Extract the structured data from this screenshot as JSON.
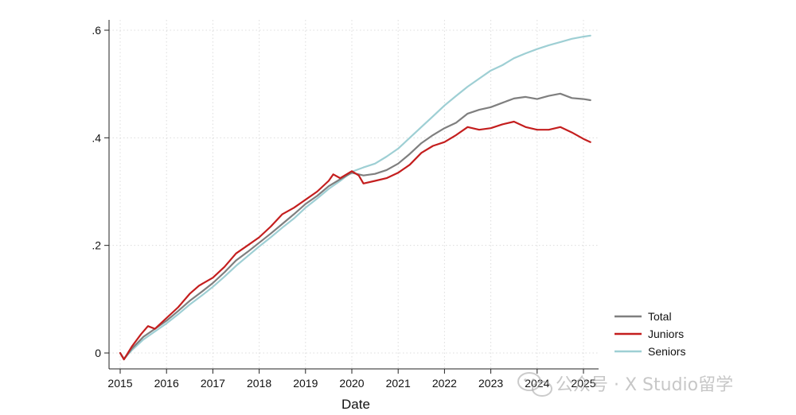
{
  "chart_data": {
    "type": "line",
    "title": "",
    "xlabel": "Date",
    "ylabel": "",
    "xlim": [
      2015,
      2025.15
    ],
    "ylim": [
      -0.03,
      0.61
    ],
    "x_ticks": [
      {
        "value": 2015,
        "label": "2015"
      },
      {
        "value": 2016,
        "label": "2016"
      },
      {
        "value": 2017,
        "label": "2017"
      },
      {
        "value": 2018,
        "label": "2018"
      },
      {
        "value": 2019,
        "label": "2019"
      },
      {
        "value": 2020,
        "label": "2020"
      },
      {
        "value": 2021,
        "label": "2021"
      },
      {
        "value": 2022,
        "label": "2022"
      },
      {
        "value": 2023,
        "label": "2023"
      },
      {
        "value": 2024,
        "label": "2024"
      },
      {
        "value": 2025,
        "label": "2025"
      }
    ],
    "y_ticks": [
      {
        "value": 0,
        "label": "0"
      },
      {
        "value": 0.2,
        "label": ".2"
      },
      {
        "value": 0.4,
        "label": ".4"
      },
      {
        "value": 0.6,
        "label": ".6"
      }
    ],
    "grid": true,
    "legend_position": "right-bottom",
    "series": [
      {
        "name": "Total",
        "color": "#7f7f7f",
        "points": [
          [
            2015.0,
            0.0
          ],
          [
            2015.08,
            -0.012
          ],
          [
            2015.25,
            0.008
          ],
          [
            2015.5,
            0.03
          ],
          [
            2015.75,
            0.045
          ],
          [
            2016.0,
            0.06
          ],
          [
            2016.25,
            0.078
          ],
          [
            2016.5,
            0.097
          ],
          [
            2016.75,
            0.113
          ],
          [
            2017.0,
            0.13
          ],
          [
            2017.25,
            0.15
          ],
          [
            2017.5,
            0.172
          ],
          [
            2017.75,
            0.188
          ],
          [
            2018.0,
            0.205
          ],
          [
            2018.25,
            0.222
          ],
          [
            2018.5,
            0.24
          ],
          [
            2018.75,
            0.258
          ],
          [
            2019.0,
            0.277
          ],
          [
            2019.25,
            0.292
          ],
          [
            2019.5,
            0.31
          ],
          [
            2019.75,
            0.323
          ],
          [
            2020.0,
            0.335
          ],
          [
            2020.25,
            0.33
          ],
          [
            2020.5,
            0.333
          ],
          [
            2020.75,
            0.34
          ],
          [
            2021.0,
            0.352
          ],
          [
            2021.25,
            0.37
          ],
          [
            2021.5,
            0.39
          ],
          [
            2021.75,
            0.405
          ],
          [
            2022.0,
            0.418
          ],
          [
            2022.25,
            0.428
          ],
          [
            2022.5,
            0.445
          ],
          [
            2022.75,
            0.452
          ],
          [
            2023.0,
            0.457
          ],
          [
            2023.25,
            0.465
          ],
          [
            2023.5,
            0.473
          ],
          [
            2023.75,
            0.476
          ],
          [
            2024.0,
            0.472
          ],
          [
            2024.25,
            0.478
          ],
          [
            2024.5,
            0.482
          ],
          [
            2024.75,
            0.474
          ],
          [
            2025.0,
            0.472
          ],
          [
            2025.15,
            0.47
          ]
        ]
      },
      {
        "name": "Juniors",
        "color": "#c41e1e",
        "points": [
          [
            2015.0,
            0.0
          ],
          [
            2015.08,
            -0.012
          ],
          [
            2015.25,
            0.012
          ],
          [
            2015.45,
            0.035
          ],
          [
            2015.6,
            0.05
          ],
          [
            2015.75,
            0.045
          ],
          [
            2016.0,
            0.065
          ],
          [
            2016.25,
            0.085
          ],
          [
            2016.5,
            0.11
          ],
          [
            2016.7,
            0.125
          ],
          [
            2017.0,
            0.14
          ],
          [
            2017.25,
            0.16
          ],
          [
            2017.5,
            0.185
          ],
          [
            2017.75,
            0.2
          ],
          [
            2018.0,
            0.215
          ],
          [
            2018.25,
            0.235
          ],
          [
            2018.5,
            0.258
          ],
          [
            2018.75,
            0.27
          ],
          [
            2019.0,
            0.285
          ],
          [
            2019.25,
            0.3
          ],
          [
            2019.5,
            0.32
          ],
          [
            2019.6,
            0.332
          ],
          [
            2019.75,
            0.325
          ],
          [
            2020.0,
            0.338
          ],
          [
            2020.15,
            0.33
          ],
          [
            2020.25,
            0.315
          ],
          [
            2020.5,
            0.32
          ],
          [
            2020.75,
            0.325
          ],
          [
            2021.0,
            0.335
          ],
          [
            2021.25,
            0.35
          ],
          [
            2021.5,
            0.372
          ],
          [
            2021.75,
            0.385
          ],
          [
            2022.0,
            0.392
          ],
          [
            2022.25,
            0.405
          ],
          [
            2022.5,
            0.42
          ],
          [
            2022.75,
            0.415
          ],
          [
            2023.0,
            0.418
          ],
          [
            2023.25,
            0.425
          ],
          [
            2023.5,
            0.43
          ],
          [
            2023.75,
            0.42
          ],
          [
            2024.0,
            0.415
          ],
          [
            2024.25,
            0.415
          ],
          [
            2024.5,
            0.42
          ],
          [
            2024.75,
            0.41
          ],
          [
            2025.0,
            0.398
          ],
          [
            2025.15,
            0.392
          ]
        ]
      },
      {
        "name": "Seniors",
        "color": "#9ecfd4",
        "points": [
          [
            2015.0,
            0.0
          ],
          [
            2015.08,
            -0.01
          ],
          [
            2015.25,
            0.005
          ],
          [
            2015.5,
            0.025
          ],
          [
            2015.75,
            0.04
          ],
          [
            2016.0,
            0.055
          ],
          [
            2016.25,
            0.072
          ],
          [
            2016.5,
            0.09
          ],
          [
            2016.75,
            0.106
          ],
          [
            2017.0,
            0.123
          ],
          [
            2017.25,
            0.142
          ],
          [
            2017.5,
            0.162
          ],
          [
            2017.75,
            0.18
          ],
          [
            2018.0,
            0.198
          ],
          [
            2018.25,
            0.215
          ],
          [
            2018.5,
            0.233
          ],
          [
            2018.75,
            0.25
          ],
          [
            2019.0,
            0.27
          ],
          [
            2019.25,
            0.287
          ],
          [
            2019.5,
            0.305
          ],
          [
            2019.75,
            0.32
          ],
          [
            2020.0,
            0.337
          ],
          [
            2020.25,
            0.345
          ],
          [
            2020.5,
            0.352
          ],
          [
            2020.75,
            0.365
          ],
          [
            2021.0,
            0.38
          ],
          [
            2021.25,
            0.4
          ],
          [
            2021.5,
            0.42
          ],
          [
            2021.75,
            0.44
          ],
          [
            2022.0,
            0.46
          ],
          [
            2022.25,
            0.478
          ],
          [
            2022.5,
            0.495
          ],
          [
            2022.75,
            0.51
          ],
          [
            2023.0,
            0.525
          ],
          [
            2023.25,
            0.535
          ],
          [
            2023.5,
            0.548
          ],
          [
            2023.75,
            0.557
          ],
          [
            2024.0,
            0.565
          ],
          [
            2024.25,
            0.572
          ],
          [
            2024.5,
            0.578
          ],
          [
            2024.75,
            0.584
          ],
          [
            2025.0,
            0.588
          ],
          [
            2025.15,
            0.59
          ]
        ]
      }
    ]
  },
  "watermark": {
    "text": "公众号 · X Studio留学",
    "icon": "wechat-icon"
  }
}
